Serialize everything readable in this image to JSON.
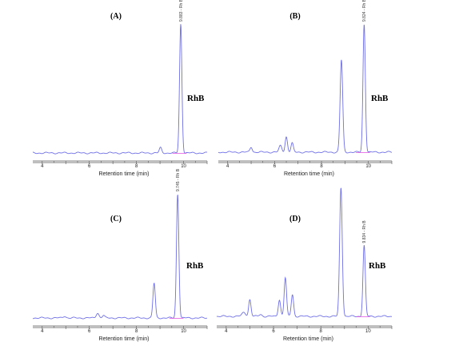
{
  "chart_data": [
    {
      "panel": "(A)",
      "type": "line",
      "xlabel": "Retention time (min)",
      "xlim": [
        3.6,
        11.0
      ],
      "xticks": [
        4,
        6,
        8,
        10
      ],
      "annotation": "RhB",
      "peak_label": "9.883 - Rh B",
      "labeled_peak_rt": 9.88,
      "peaks": [
        {
          "rt": 9.02,
          "height": 0.04,
          "width": 0.05
        },
        {
          "rt": 9.88,
          "height": 1.0,
          "width": 0.05
        }
      ]
    },
    {
      "panel": "(B)",
      "type": "line",
      "xlabel": "Retention time (min)",
      "xlim": [
        3.6,
        11.0
      ],
      "xticks": [
        4,
        6,
        8,
        10
      ],
      "annotation": "RhB",
      "peak_label": "9.824 - Rh B",
      "labeled_peak_rt": 9.82,
      "peaks": [
        {
          "rt": 5.0,
          "height": 0.04,
          "width": 0.05
        },
        {
          "rt": 6.25,
          "height": 0.05,
          "width": 0.06
        },
        {
          "rt": 6.5,
          "height": 0.12,
          "width": 0.05
        },
        {
          "rt": 6.75,
          "height": 0.07,
          "width": 0.05
        },
        {
          "rt": 8.85,
          "height": 0.72,
          "width": 0.055
        },
        {
          "rt": 9.82,
          "height": 1.0,
          "width": 0.05
        }
      ]
    },
    {
      "panel": "(C)",
      "type": "line",
      "xlabel": "Retention time (min)",
      "xlim": [
        3.6,
        11.0
      ],
      "xticks": [
        4,
        6,
        8,
        10
      ],
      "annotation": "RhB",
      "peak_label": "9.745 - Rh B",
      "labeled_peak_rt": 9.75,
      "peaks": [
        {
          "rt": 4.95,
          "height": 0.015,
          "width": 0.06
        },
        {
          "rt": 6.35,
          "height": 0.04,
          "width": 0.06
        },
        {
          "rt": 6.6,
          "height": 0.02,
          "width": 0.05
        },
        {
          "rt": 8.75,
          "height": 0.28,
          "width": 0.05
        },
        {
          "rt": 9.75,
          "height": 1.0,
          "width": 0.05
        }
      ]
    },
    {
      "panel": "(D)",
      "type": "line",
      "xlabel": "Retention time (min)",
      "xlim": [
        3.6,
        11.0
      ],
      "xticks": [
        4,
        6,
        8,
        10
      ],
      "annotation": "RhB",
      "peak_label": "9.834 - Rh B",
      "labeled_peak_rt": 9.83,
      "peaks": [
        {
          "rt": 4.75,
          "height": 0.03,
          "width": 0.08
        },
        {
          "rt": 5.0,
          "height": 0.13,
          "width": 0.05
        },
        {
          "rt": 5.45,
          "height": 0.015,
          "width": 0.06
        },
        {
          "rt": 6.25,
          "height": 0.13,
          "width": 0.05
        },
        {
          "rt": 6.5,
          "height": 0.3,
          "width": 0.05
        },
        {
          "rt": 6.8,
          "height": 0.17,
          "width": 0.05
        },
        {
          "rt": 8.85,
          "height": 1.0,
          "width": 0.055
        },
        {
          "rt": 9.83,
          "height": 0.55,
          "width": 0.05
        }
      ]
    }
  ]
}
